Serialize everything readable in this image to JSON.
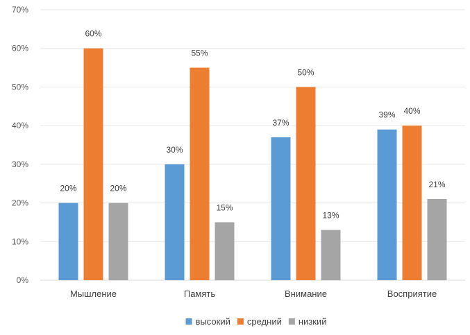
{
  "chart_data": {
    "type": "bar",
    "title": "",
    "xlabel": "",
    "ylabel": "",
    "categories": [
      "Мышление",
      "Память",
      "Внимание",
      "Восприятие"
    ],
    "series": [
      {
        "name": "высокий",
        "color": "#5B9BD5",
        "values": [
          20,
          30,
          37,
          39
        ]
      },
      {
        "name": "средний",
        "color": "#ED7D31",
        "values": [
          60,
          55,
          50,
          40
        ]
      },
      {
        "name": "низкий",
        "color": "#A5A5A5",
        "values": [
          20,
          15,
          13,
          21
        ]
      }
    ],
    "ylim": [
      0,
      70
    ],
    "yticks": [
      "0%",
      "10%",
      "20%",
      "30%",
      "40%",
      "50%",
      "60%",
      "70%"
    ],
    "data_label_suffix": "%",
    "grid": true,
    "legend_position": "bottom"
  }
}
